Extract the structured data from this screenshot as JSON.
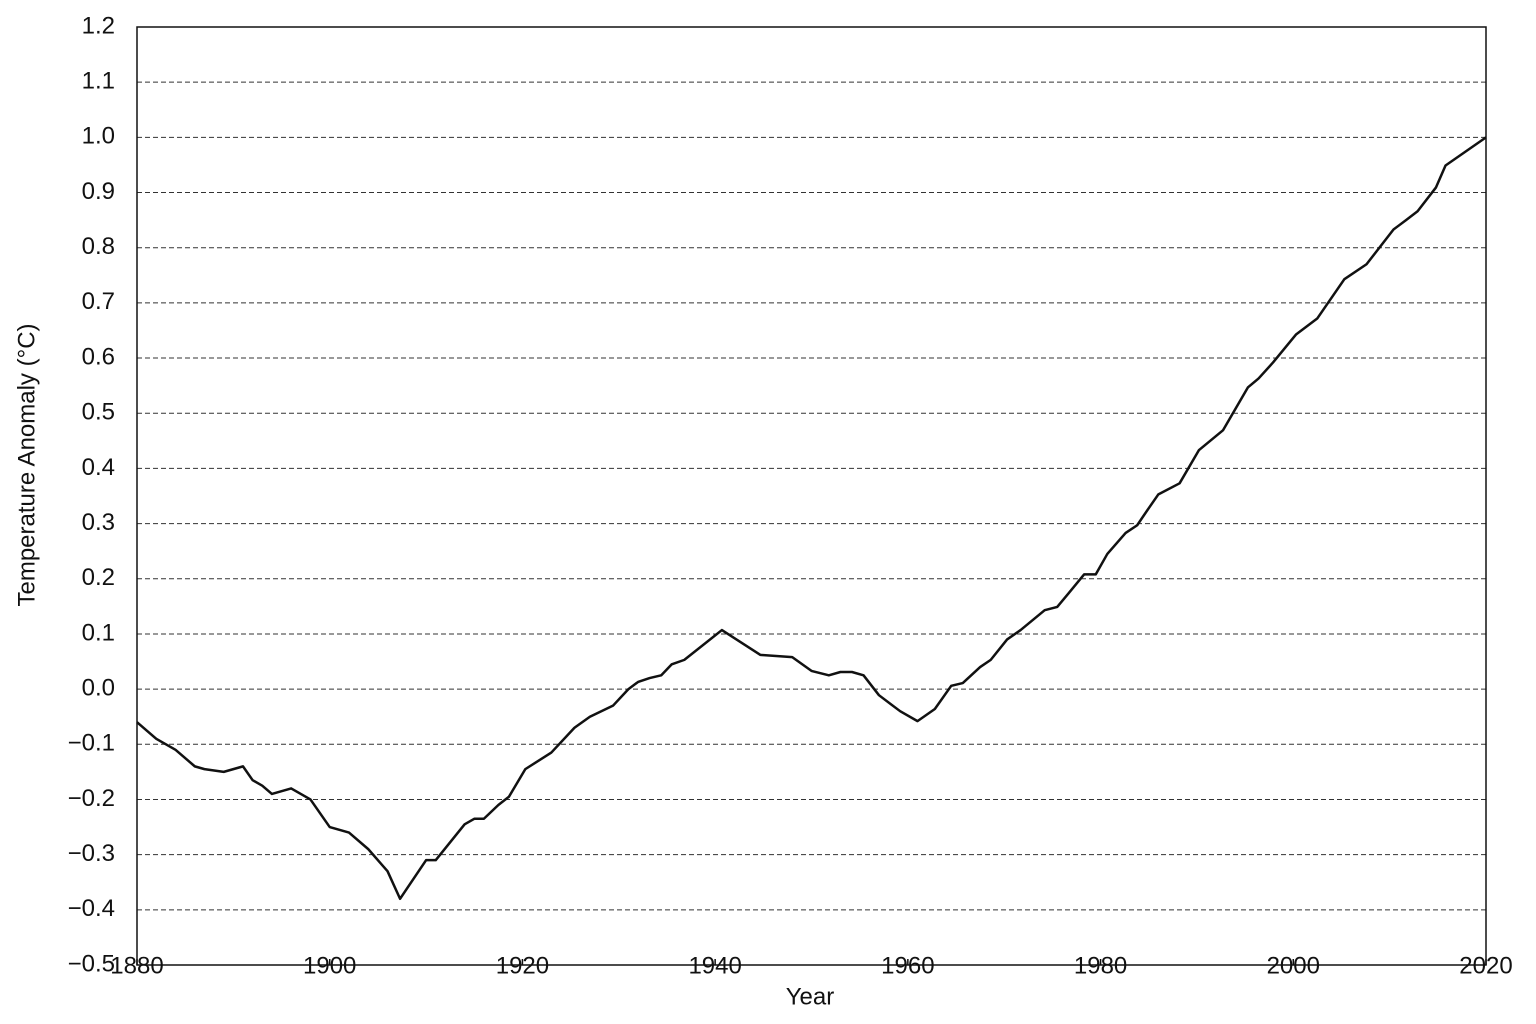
{
  "chart_data": {
    "type": "line",
    "x_label": "Year",
    "y_label": "Temperature Anomaly (°C)",
    "x": [
      1880,
      1882,
      1884,
      1886,
      1887,
      1889,
      1891,
      1892,
      1893,
      1894,
      1896,
      1898,
      1900,
      1902,
      1904,
      1906,
      1907.3,
      1910,
      1911,
      1914,
      1915,
      1916,
      1917.5,
      1918.6,
      1920.3,
      1923,
      1925.4,
      1927,
      1929.4,
      1931,
      1932,
      1933.2,
      1934.4,
      1935.5,
      1936.8,
      1940.7,
      1944.7,
      1948,
      1950,
      1951.8,
      1953,
      1954.2,
      1955.4,
      1957,
      1959.2,
      1961,
      1962.8,
      1964.5,
      1965.7,
      1967.5,
      1968.6,
      1970.3,
      1971.7,
      1974.2,
      1975.5,
      1976.7,
      1978.3,
      1979.5,
      1980.7,
      1982.6,
      1983.8,
      1985,
      1986,
      1988.2,
      1990.2,
      1992.7,
      1995.3,
      1996.4,
      1997.9,
      2000.3,
      2002.5,
      2005.3,
      2007.6,
      2010.4,
      2011.7,
      2012.9,
      2014.8,
      2015.8,
      2020
    ],
    "series": [
      {
        "color": "#111111",
        "values": [
          -0.06,
          -0.09,
          -0.11,
          -0.14,
          -0.145,
          -0.15,
          -0.14,
          -0.165,
          -0.175,
          -0.19,
          -0.18,
          -0.2,
          -0.25,
          -0.26,
          -0.29,
          -0.33,
          -0.38,
          -0.31,
          -0.31,
          -0.245,
          -0.235,
          -0.235,
          -0.21,
          -0.195,
          -0.145,
          -0.115,
          -0.07,
          -0.05,
          -0.03,
          0.0,
          0.013,
          0.02,
          0.025,
          0.045,
          0.053,
          0.107,
          0.062,
          0.058,
          0.033,
          0.025,
          0.031,
          0.031,
          0.025,
          -0.011,
          -0.04,
          -0.058,
          -0.036,
          0.006,
          0.011,
          0.04,
          0.053,
          0.09,
          0.107,
          0.143,
          0.149,
          0.174,
          0.208,
          0.208,
          0.245,
          0.283,
          0.297,
          0.328,
          0.353,
          0.373,
          0.433,
          0.469,
          0.547,
          0.563,
          0.592,
          0.643,
          0.672,
          0.743,
          0.77,
          0.833,
          0.85,
          0.866,
          0.909,
          0.949,
          1.0
        ]
      }
    ],
    "xlim": [
      1880,
      2020
    ],
    "xticks": [
      1880,
      1900,
      1920,
      1940,
      1960,
      1980,
      2000,
      2020
    ],
    "ylim": [
      -0.5,
      1.2
    ],
    "yticks": [
      {
        "value": -0.5,
        "label": "−0.5"
      },
      {
        "value": -0.4,
        "label": "−0.4"
      },
      {
        "value": -0.3,
        "label": "−0.3"
      },
      {
        "value": -0.2,
        "label": "−0.2"
      },
      {
        "value": -0.1,
        "label": "−0.1"
      },
      {
        "value": 0,
        "label": "0.0"
      },
      0.1,
      0.2,
      0.3,
      0.4,
      0.5,
      0.6,
      0.7,
      0.8,
      0.9,
      {
        "value": 1,
        "label": "1.0"
      },
      1.1,
      1.2
    ],
    "grid": true
  }
}
